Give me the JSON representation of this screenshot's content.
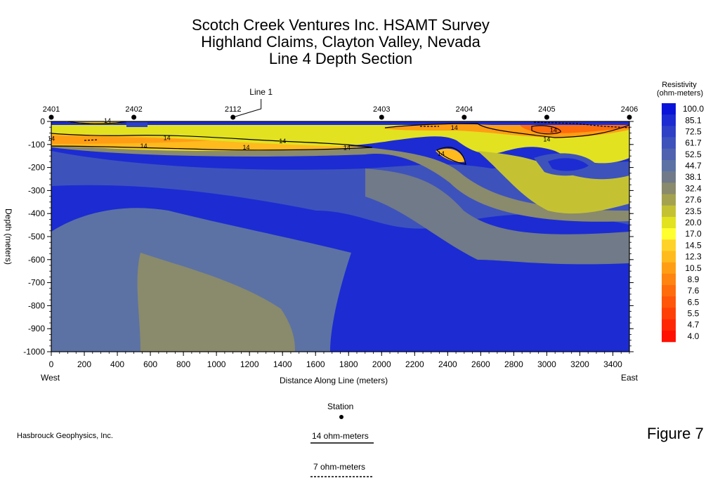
{
  "title_lines": [
    "Scotch Creek Ventures Inc. HSAMT Survey",
    "Highland Claims, Clayton Valley, Nevada",
    "Line 4 Depth Section"
  ],
  "figure_label": "Figure 7",
  "company": "Hasbrouck Geophysics, Inc.",
  "legend_keys": {
    "station": "Station",
    "contour_14": "14 ohm-meters",
    "contour_7": "7 ohm-meters"
  },
  "chart_data": {
    "type": "heatmap",
    "xlabel": "Distance Along Line (meters)",
    "ylabel": "Depth (meters)",
    "xlim": [
      0,
      3500
    ],
    "ylim": [
      -1000,
      0
    ],
    "x_ticks": [
      0,
      200,
      400,
      600,
      800,
      1000,
      1200,
      1400,
      1600,
      1800,
      2000,
      2200,
      2400,
      2600,
      2800,
      3000,
      3200,
      3400
    ],
    "y_ticks": [
      0,
      -100,
      -200,
      -300,
      -400,
      -500,
      -600,
      -700,
      -800,
      -900,
      -1000
    ],
    "x_end_labels": {
      "left": "West",
      "right": "East"
    },
    "stations": [
      {
        "label": "2401",
        "x": 0
      },
      {
        "label": "2402",
        "x": 500
      },
      {
        "label": "2112",
        "x": 1100
      },
      {
        "label": "2403",
        "x": 2000
      },
      {
        "label": "2404",
        "x": 2500
      },
      {
        "label": "2405",
        "x": 3000
      },
      {
        "label": "2406",
        "x": 3500
      }
    ],
    "line_annotation": {
      "label": "Line 1",
      "x": 1100
    },
    "colorbar": {
      "title_lines": [
        "Resistivity",
        "(ohm-meters)"
      ],
      "levels": [
        "100.0",
        "85.1",
        "72.5",
        "61.7",
        "52.5",
        "44.7",
        "38.1",
        "32.4",
        "27.6",
        "23.5",
        "20.0",
        "17.0",
        "14.5",
        "12.3",
        "10.5",
        "8.9",
        "7.6",
        "6.5",
        "5.5",
        "4.7",
        "4.0"
      ],
      "colors": [
        "#0a14d8",
        "#1c2cd2",
        "#2e40c6",
        "#3e52bc",
        "#4e62b0",
        "#5c72a4",
        "#707a88",
        "#8a8a6c",
        "#a4a24e",
        "#c4c232",
        "#e2e220",
        "#ffff30",
        "#ffd22a",
        "#ffba1e",
        "#ff9e14",
        "#ff8410",
        "#ff6c0c",
        "#ff560a",
        "#ff4006",
        "#ff2804",
        "#ff1000"
      ]
    },
    "contour_labels": [
      {
        "text": "14",
        "x": 0,
        "y": -75
      },
      {
        "text": "14",
        "x": 340,
        "y": 3
      },
      {
        "text": "14",
        "x": 700,
        "y": -72
      },
      {
        "text": "14",
        "x": 560,
        "y": -107
      },
      {
        "text": "14",
        "x": 1180,
        "y": -113
      },
      {
        "text": "14",
        "x": 1400,
        "y": -85
      },
      {
        "text": "14",
        "x": 1790,
        "y": -115
      },
      {
        "text": "14",
        "x": 2440,
        "y": -28
      },
      {
        "text": "14",
        "x": 2360,
        "y": -140
      },
      {
        "text": "14",
        "x": 3000,
        "y": -77
      },
      {
        "text": "14",
        "x": 3040,
        "y": -38
      }
    ]
  }
}
